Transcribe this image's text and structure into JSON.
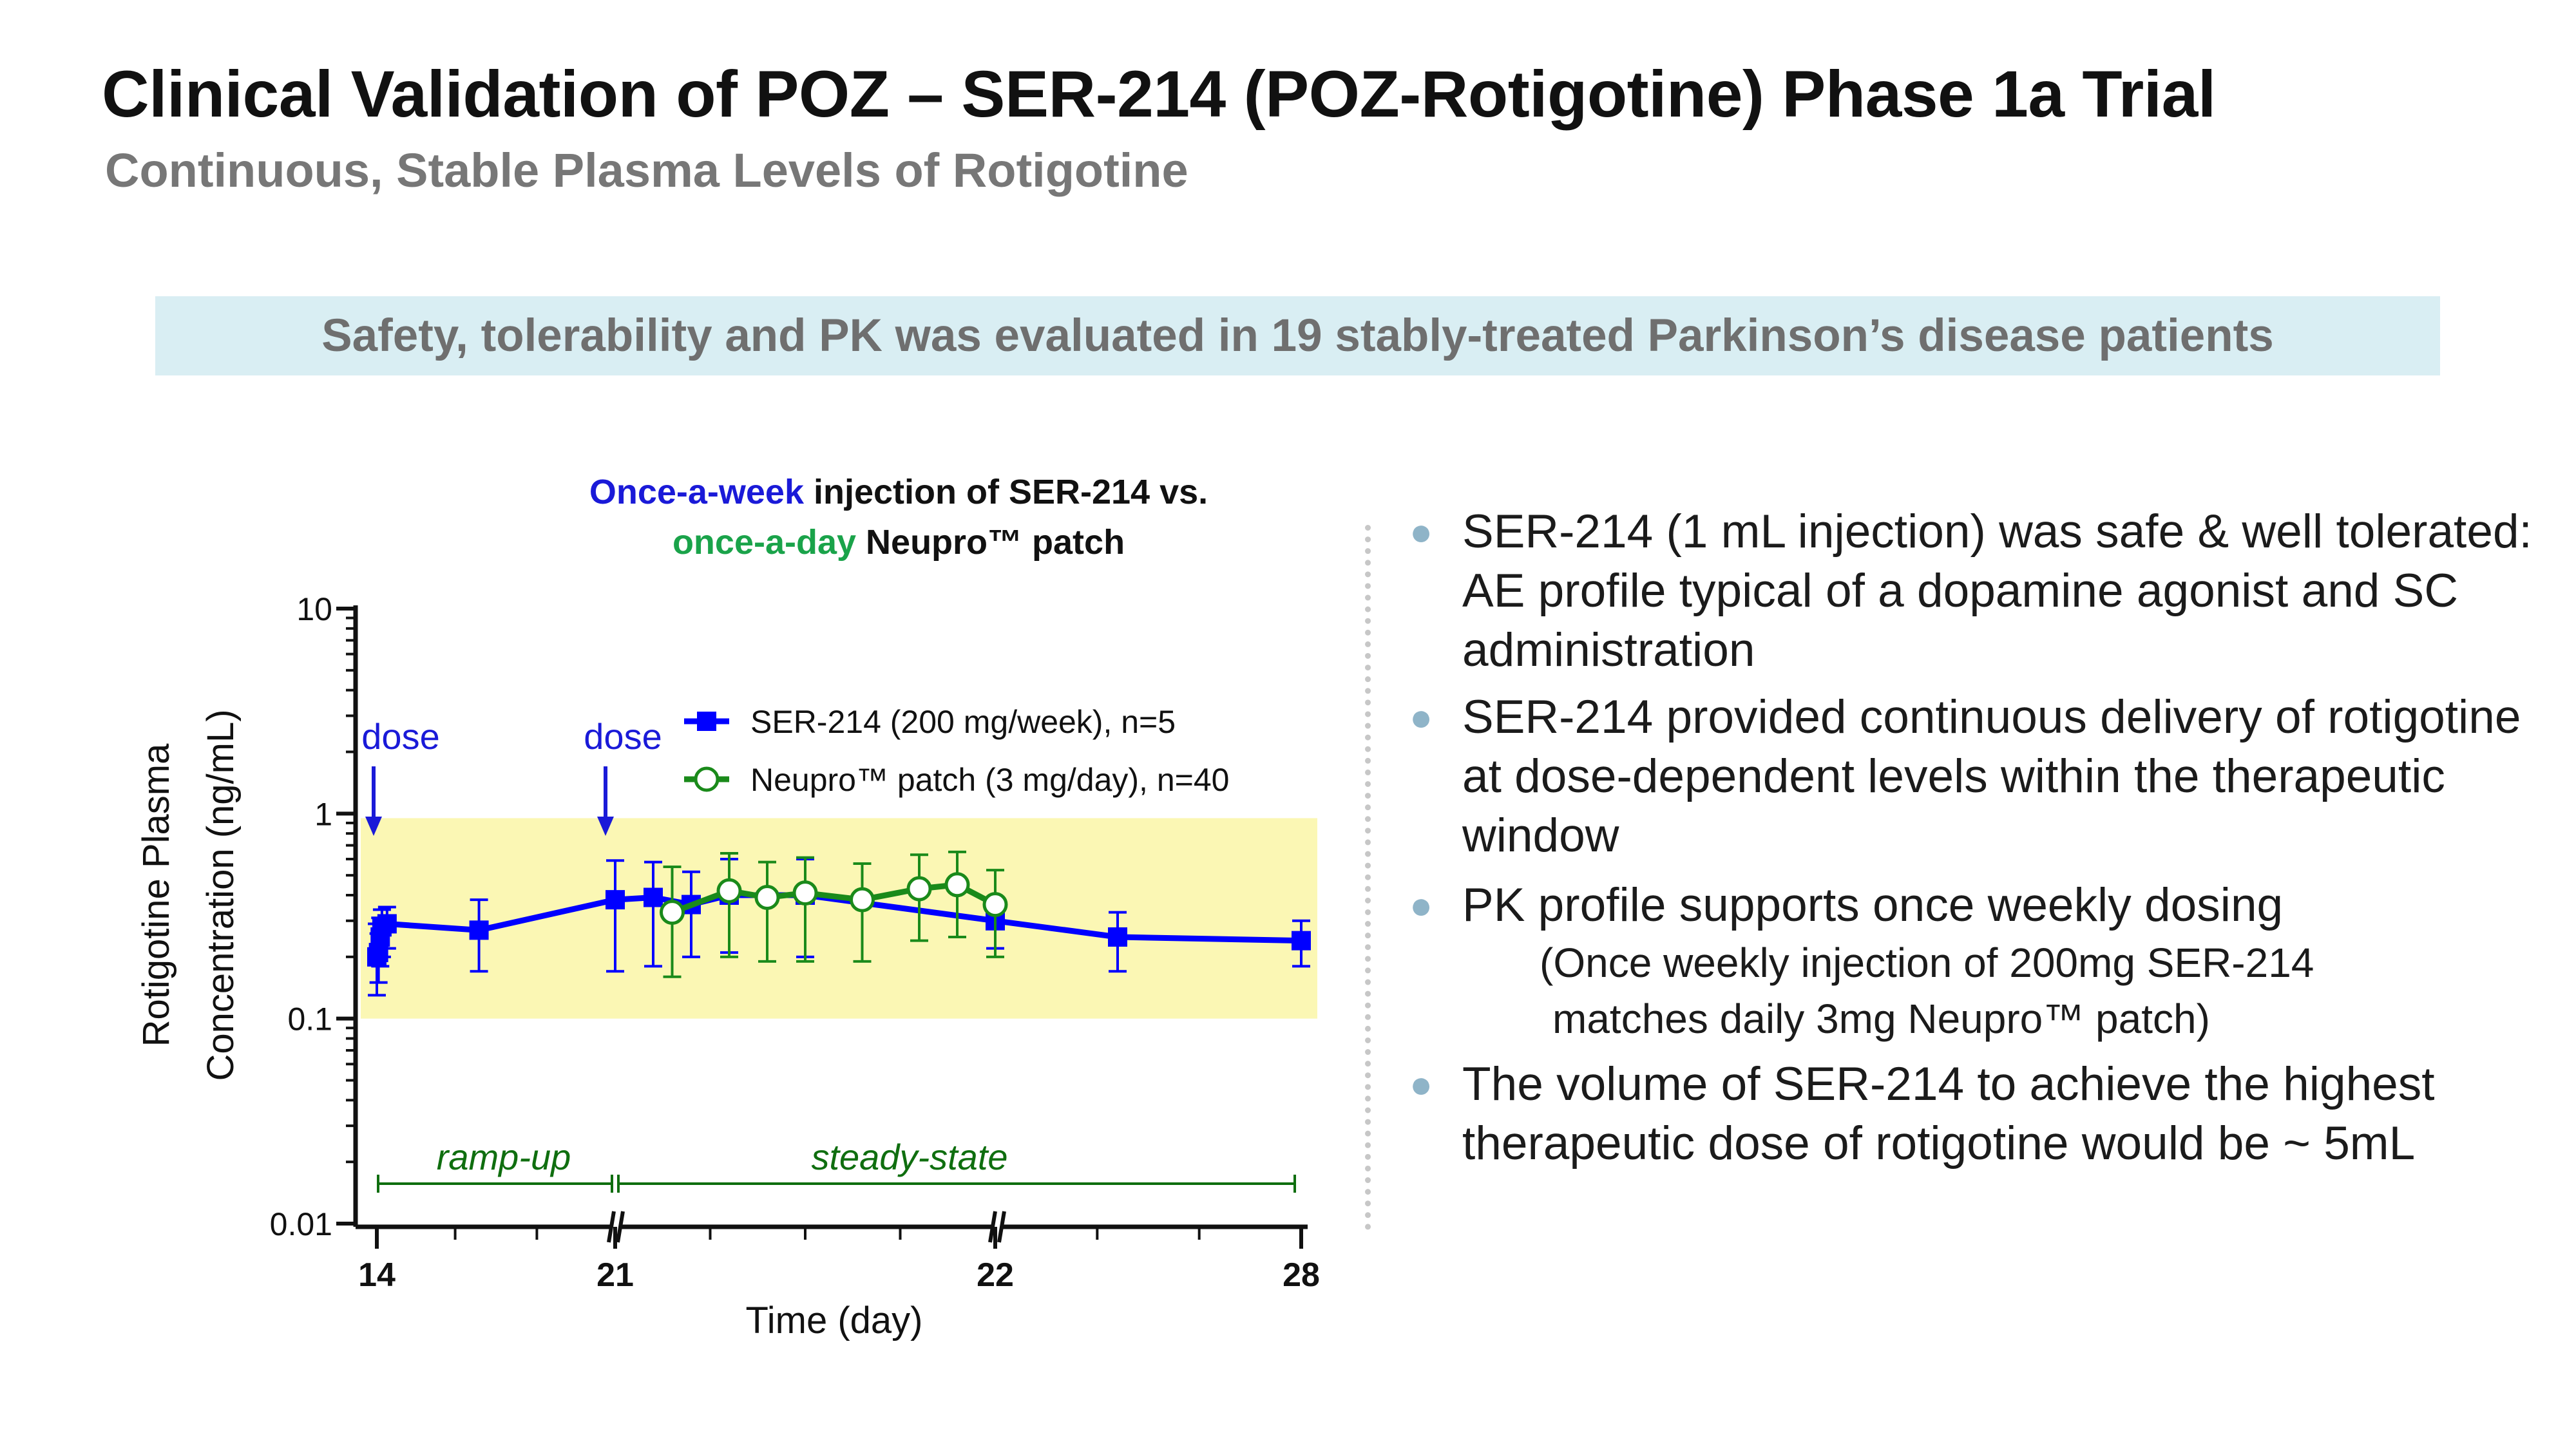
{
  "slide": {
    "title": "Clinical Validation of POZ – SER-214 (POZ-Rotigotine) Phase 1a Trial",
    "subtitle": "Continuous, Stable Plasma Levels of Rotigotine",
    "banner": "Safety, tolerability and PK was evaluated in 19 stably-treated Parkinson’s disease patients"
  },
  "bullets": {
    "b1": "SER-214 (1 mL injection) was safe & well tolerated: AE profile typical of a dopamine agonist and SC administration",
    "b2": "SER-214 provided continuous delivery of rotigotine at dose-dependent levels within the therapeutic window",
    "b3": "PK profile supports once weekly dosing",
    "b3_note_1": "(Once weekly injection of 200mg SER-214",
    "b3_note_2": "matches daily 3mg Neupro™ patch)",
    "b4": "The volume of SER-214 to achieve the highest therapeutic dose of rotigotine would be ~ 5mL"
  },
  "chart_data": {
    "type": "line",
    "title_parts": {
      "p1": "Once-a-week",
      "p2": " injection of SER-214 vs.",
      "p3": "once-a-day",
      "p4": " Neupro™ patch"
    },
    "colors": {
      "ser214": "#0000ff",
      "neupro": "#1a8a1a",
      "window": "#fbf7b4",
      "title_week": "#1a1ad8",
      "title_day": "#1aa34a",
      "annotation": "#0f6e0f"
    },
    "xlabel": "Time  (day)",
    "ylabel_line1": "Rotigotine Plasma",
    "ylabel_line2": "Concentration  (ng/mL)",
    "y_scale": "log",
    "ylim": [
      0.01,
      10
    ],
    "y_ticks": [
      "10",
      "1",
      "0.1",
      "0.01"
    ],
    "x_ticks": [
      "14",
      "21",
      "22",
      "28"
    ],
    "x_note": "broken time axis: day 14–21, 21–22 (expanded), 22–28",
    "therapeutic_window": [
      0.1,
      0.95
    ],
    "annotations": {
      "dose": "dose",
      "ramp_up": "ramp-up",
      "steady_state": "steady-state"
    },
    "legend": [
      {
        "name": "SER-214 (200 mg/week), n=5",
        "marker": "square"
      },
      {
        "name": "Neupro™ patch (3 mg/day), n=40",
        "marker": "open-circle"
      }
    ],
    "series": [
      {
        "name": "SER-214 (200 mg/week), n=5",
        "points": [
          {
            "t": 14.0,
            "y": 0.2,
            "lo": 0.13,
            "hi": 0.29
          },
          {
            "t": 14.05,
            "y": 0.21,
            "lo": 0.15,
            "hi": 0.26
          },
          {
            "t": 14.1,
            "y": 0.25,
            "lo": 0.18,
            "hi": 0.31
          },
          {
            "t": 14.15,
            "y": 0.28,
            "lo": 0.2,
            "hi": 0.34
          },
          {
            "t": 14.3,
            "y": 0.29,
            "lo": 0.22,
            "hi": 0.35
          },
          {
            "t": 17.0,
            "y": 0.27,
            "lo": 0.17,
            "hi": 0.38
          },
          {
            "t": 21.0,
            "y": 0.38,
            "lo": 0.17,
            "hi": 0.59
          },
          {
            "t": 21.1,
            "y": 0.39,
            "lo": 0.18,
            "hi": 0.58
          },
          {
            "t": 21.2,
            "y": 0.36,
            "lo": 0.2,
            "hi": 0.52
          },
          {
            "t": 21.3,
            "y": 0.4,
            "lo": 0.21,
            "hi": 0.6
          },
          {
            "t": 21.5,
            "y": 0.4,
            "lo": 0.2,
            "hi": 0.6
          },
          {
            "t": 22.0,
            "y": 0.3,
            "lo": 0.22,
            "hi": 0.38
          },
          {
            "t": 24.4,
            "y": 0.25,
            "lo": 0.17,
            "hi": 0.33
          },
          {
            "t": 28.0,
            "y": 0.24,
            "lo": 0.18,
            "hi": 0.3
          }
        ]
      },
      {
        "name": "Neupro™ patch (3 mg/day), n=40",
        "points": [
          {
            "t": 21.15,
            "y": 0.33,
            "lo": 0.16,
            "hi": 0.55
          },
          {
            "t": 21.3,
            "y": 0.42,
            "lo": 0.2,
            "hi": 0.64
          },
          {
            "t": 21.4,
            "y": 0.39,
            "lo": 0.19,
            "hi": 0.58
          },
          {
            "t": 21.5,
            "y": 0.41,
            "lo": 0.19,
            "hi": 0.61
          },
          {
            "t": 21.65,
            "y": 0.38,
            "lo": 0.19,
            "hi": 0.57
          },
          {
            "t": 21.8,
            "y": 0.43,
            "lo": 0.24,
            "hi": 0.63
          },
          {
            "t": 21.9,
            "y": 0.45,
            "lo": 0.25,
            "hi": 0.65
          },
          {
            "t": 22.0,
            "y": 0.36,
            "lo": 0.2,
            "hi": 0.53
          }
        ]
      }
    ]
  }
}
